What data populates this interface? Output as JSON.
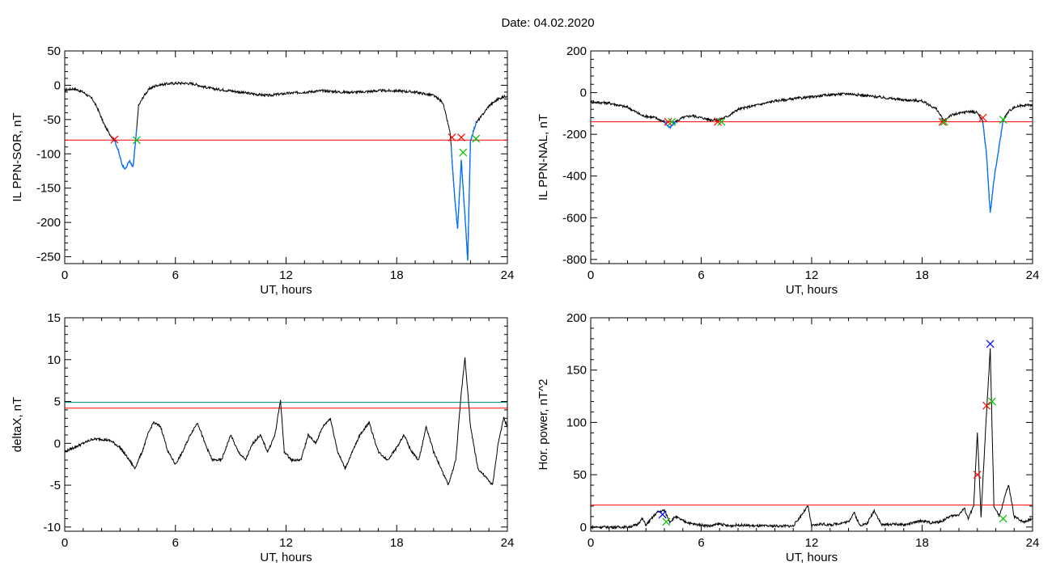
{
  "title": "Date:  04.02.2020",
  "colors": {
    "line": "#000000",
    "threshold_red": "#ff0000",
    "threshold_cyan": "#008080",
    "highlight": "#0070ff",
    "marker_red": "#ff0000",
    "marker_green": "#00c000",
    "marker_blue": "#0000ff"
  },
  "chart_data": [
    {
      "id": "sor",
      "type": "line",
      "xlabel": "UT, hours",
      "ylabel": "IL PPN-SOR, nT",
      "xlim": [
        0,
        24
      ],
      "ylim": [
        -260,
        50
      ],
      "xticks": [
        0,
        6,
        12,
        18,
        24
      ],
      "yticks": [
        50,
        0,
        -50,
        -100,
        -150,
        -200,
        -250
      ],
      "threshold": -80,
      "series": [
        {
          "values": [
            [
              0,
              -7
            ],
            [
              0.5,
              -5
            ],
            [
              1.0,
              -10
            ],
            [
              1.5,
              -20
            ],
            [
              1.8,
              -35
            ],
            [
              2.1,
              -55
            ],
            [
              2.4,
              -70
            ],
            [
              2.7,
              -80
            ],
            [
              2.9,
              -95
            ],
            [
              3.1,
              -115
            ],
            [
              3.3,
              -122
            ],
            [
              3.5,
              -110
            ],
            [
              3.7,
              -120
            ],
            [
              3.85,
              -80
            ],
            [
              4.0,
              -30
            ],
            [
              4.3,
              -15
            ],
            [
              4.6,
              -5
            ],
            [
              5.0,
              0
            ],
            [
              5.5,
              2
            ],
            [
              6.0,
              3
            ],
            [
              6.5,
              3
            ],
            [
              7.0,
              2
            ],
            [
              7.5,
              -2
            ],
            [
              8.0,
              -5
            ],
            [
              9.0,
              -8
            ],
            [
              10.0,
              -12
            ],
            [
              11.0,
              -15
            ],
            [
              12.0,
              -12
            ],
            [
              13.0,
              -10
            ],
            [
              14.0,
              -8
            ],
            [
              15.0,
              -10
            ],
            [
              16.0,
              -10
            ],
            [
              17.0,
              -8
            ],
            [
              18.0,
              -8
            ],
            [
              19.0,
              -10
            ],
            [
              20.0,
              -15
            ],
            [
              20.5,
              -25
            ],
            [
              20.9,
              -70
            ],
            [
              21.1,
              -150
            ],
            [
              21.3,
              -210
            ],
            [
              21.5,
              -110
            ],
            [
              21.7,
              -190
            ],
            [
              21.85,
              -255
            ],
            [
              22.0,
              -80
            ],
            [
              22.3,
              -55
            ],
            [
              22.6,
              -45
            ],
            [
              23.0,
              -30
            ],
            [
              23.5,
              -20
            ],
            [
              24.0,
              -15
            ]
          ]
        }
      ],
      "markers": [
        {
          "x": 2.7,
          "y": -79,
          "color": "red"
        },
        {
          "x": 3.9,
          "y": -80,
          "color": "green"
        },
        {
          "x": 21.0,
          "y": -76,
          "color": "red"
        },
        {
          "x": 21.5,
          "y": -76,
          "color": "red"
        },
        {
          "x": 22.3,
          "y": -78,
          "color": "green"
        },
        {
          "x": 21.6,
          "y": -98,
          "color": "green"
        }
      ],
      "highlights": [
        [
          2.7,
          3.9
        ],
        [
          20.95,
          22.3
        ]
      ]
    },
    {
      "id": "nal",
      "type": "line",
      "xlabel": "UT, hours",
      "ylabel": "IL PPN-NAL, nT",
      "xlim": [
        0,
        24
      ],
      "ylim": [
        -820,
        200
      ],
      "xticks": [
        0,
        6,
        12,
        18,
        24
      ],
      "yticks": [
        200,
        0,
        -200,
        -400,
        -600,
        -800
      ],
      "threshold": -140,
      "series": [
        {
          "values": [
            [
              0,
              -45
            ],
            [
              1.0,
              -50
            ],
            [
              2.0,
              -70
            ],
            [
              2.8,
              -110
            ],
            [
              3.5,
              -120
            ],
            [
              4.0,
              -140
            ],
            [
              4.3,
              -170
            ],
            [
              4.6,
              -140
            ],
            [
              5.0,
              -120
            ],
            [
              5.5,
              -110
            ],
            [
              6.0,
              -120
            ],
            [
              6.5,
              -130
            ],
            [
              7.0,
              -130
            ],
            [
              7.5,
              -110
            ],
            [
              8.0,
              -80
            ],
            [
              9.0,
              -60
            ],
            [
              10.0,
              -40
            ],
            [
              11.0,
              -30
            ],
            [
              12.0,
              -20
            ],
            [
              13.0,
              -10
            ],
            [
              14.0,
              -5
            ],
            [
              15.0,
              -15
            ],
            [
              16.0,
              -25
            ],
            [
              17.0,
              -35
            ],
            [
              18.0,
              -40
            ],
            [
              18.8,
              -80
            ],
            [
              19.2,
              -140
            ],
            [
              19.5,
              -110
            ],
            [
              20.0,
              -100
            ],
            [
              20.5,
              -90
            ],
            [
              21.0,
              -95
            ],
            [
              21.3,
              -140
            ],
            [
              21.5,
              -300
            ],
            [
              21.7,
              -580
            ],
            [
              21.9,
              -420
            ],
            [
              22.2,
              -250
            ],
            [
              22.4,
              -130
            ],
            [
              22.7,
              -90
            ],
            [
              23.0,
              -70
            ],
            [
              23.5,
              -60
            ],
            [
              24.0,
              -60
            ]
          ]
        }
      ],
      "markers": [
        {
          "x": 4.2,
          "y": -140,
          "color": "red"
        },
        {
          "x": 4.4,
          "y": -140,
          "color": "green"
        },
        {
          "x": 6.9,
          "y": -140,
          "color": "red"
        },
        {
          "x": 7.1,
          "y": -140,
          "color": "green"
        },
        {
          "x": 19.1,
          "y": -140,
          "color": "red"
        },
        {
          "x": 19.2,
          "y": -140,
          "color": "green"
        },
        {
          "x": 21.3,
          "y": -120,
          "color": "red"
        },
        {
          "x": 22.4,
          "y": -130,
          "color": "green"
        }
      ],
      "highlights": [
        [
          4.0,
          4.6
        ],
        [
          21.3,
          22.4
        ]
      ]
    },
    {
      "id": "deltax",
      "type": "line",
      "xlabel": "UT, hours",
      "ylabel": "deltaX, nT",
      "xlim": [
        0,
        24
      ],
      "ylim": [
        -10.5,
        15
      ],
      "xticks": [
        0,
        6,
        12,
        18,
        24
      ],
      "yticks": [
        15,
        10,
        5,
        0,
        -5,
        -10
      ],
      "threshold_lines": [
        {
          "y": 4.9,
          "color": "cyan"
        },
        {
          "y": 4.2,
          "color": "red"
        }
      ],
      "series": [
        {
          "values": [
            [
              0,
              -1
            ],
            [
              0.5,
              -0.5
            ],
            [
              1.0,
              0
            ],
            [
              1.5,
              0.5
            ],
            [
              2.0,
              0.5
            ],
            [
              2.5,
              0.3
            ],
            [
              3.0,
              -0.5
            ],
            [
              3.5,
              -2
            ],
            [
              3.8,
              -3
            ],
            [
              4.2,
              -1
            ],
            [
              4.5,
              1
            ],
            [
              4.8,
              2.5
            ],
            [
              5.2,
              2
            ],
            [
              5.6,
              -1
            ],
            [
              6.0,
              -2.5
            ],
            [
              6.4,
              -1
            ],
            [
              6.8,
              1
            ],
            [
              7.2,
              2.5
            ],
            [
              7.6,
              0
            ],
            [
              8.0,
              -2
            ],
            [
              8.5,
              -2
            ],
            [
              9.0,
              1
            ],
            [
              9.4,
              -1
            ],
            [
              9.8,
              -2
            ],
            [
              10.2,
              0
            ],
            [
              10.6,
              1
            ],
            [
              11.0,
              -1
            ],
            [
              11.4,
              1
            ],
            [
              11.7,
              5.2
            ],
            [
              11.9,
              -1
            ],
            [
              12.3,
              -2
            ],
            [
              12.8,
              -2
            ],
            [
              13.2,
              1
            ],
            [
              13.6,
              0
            ],
            [
              14.0,
              2
            ],
            [
              14.4,
              3
            ],
            [
              14.8,
              -1
            ],
            [
              15.2,
              -3
            ],
            [
              15.6,
              -1
            ],
            [
              16.0,
              1
            ],
            [
              16.5,
              2.5
            ],
            [
              17.0,
              -1
            ],
            [
              17.5,
              -2
            ],
            [
              18.0,
              -0.5
            ],
            [
              18.4,
              1
            ],
            [
              18.8,
              -1
            ],
            [
              19.2,
              -2
            ],
            [
              19.6,
              2
            ],
            [
              20.0,
              -1
            ],
            [
              20.4,
              -3
            ],
            [
              20.8,
              -5
            ],
            [
              21.2,
              -2
            ],
            [
              21.5,
              6
            ],
            [
              21.7,
              10.3
            ],
            [
              22.0,
              2
            ],
            [
              22.4,
              -3
            ],
            [
              22.8,
              -4
            ],
            [
              23.2,
              -5
            ],
            [
              23.5,
              0
            ],
            [
              23.8,
              3
            ],
            [
              24.0,
              2
            ]
          ]
        }
      ]
    },
    {
      "id": "power",
      "type": "line",
      "xlabel": "UT, hours",
      "ylabel": "Hor. power, nT^2",
      "xlim": [
        0,
        24
      ],
      "ylim": [
        -4,
        200
      ],
      "xticks": [
        0,
        6,
        12,
        18,
        24
      ],
      "yticks": [
        200,
        150,
        100,
        50,
        0
      ],
      "threshold": 21,
      "series": [
        {
          "values": [
            [
              0,
              0
            ],
            [
              1.0,
              0
            ],
            [
              2.0,
              0
            ],
            [
              2.5,
              2
            ],
            [
              2.8,
              8
            ],
            [
              3.0,
              2
            ],
            [
              3.3,
              8
            ],
            [
              3.6,
              14
            ],
            [
              4.0,
              16
            ],
            [
              4.3,
              5
            ],
            [
              4.6,
              10
            ],
            [
              5.0,
              6
            ],
            [
              5.5,
              3
            ],
            [
              6.0,
              2
            ],
            [
              6.5,
              1
            ],
            [
              7.0,
              3
            ],
            [
              7.5,
              1
            ],
            [
              8.0,
              2
            ],
            [
              9.0,
              1
            ],
            [
              10.0,
              1
            ],
            [
              11.0,
              1
            ],
            [
              11.8,
              20
            ],
            [
              12.0,
              1
            ],
            [
              12.5,
              3
            ],
            [
              13.0,
              2
            ],
            [
              14.0,
              5
            ],
            [
              14.3,
              14
            ],
            [
              14.6,
              2
            ],
            [
              15.0,
              3
            ],
            [
              15.4,
              16
            ],
            [
              15.8,
              2
            ],
            [
              16.5,
              3
            ],
            [
              17.0,
              2
            ],
            [
              17.5,
              4
            ],
            [
              18.0,
              6
            ],
            [
              18.5,
              4
            ],
            [
              19.0,
              5
            ],
            [
              19.5,
              10
            ],
            [
              20.0,
              12
            ],
            [
              20.3,
              18
            ],
            [
              20.5,
              8
            ],
            [
              20.8,
              20
            ],
            [
              21.0,
              90
            ],
            [
              21.2,
              10
            ],
            [
              21.5,
              110
            ],
            [
              21.7,
              170
            ],
            [
              21.9,
              20
            ],
            [
              22.2,
              10
            ],
            [
              22.5,
              30
            ],
            [
              22.7,
              40
            ],
            [
              23.0,
              10
            ],
            [
              23.5,
              5
            ],
            [
              24.0,
              8
            ]
          ]
        }
      ],
      "markers": [
        {
          "x": 3.9,
          "y": 12,
          "color": "blue"
        },
        {
          "x": 4.1,
          "y": 5,
          "color": "green"
        },
        {
          "x": 21.0,
          "y": 50,
          "color": "red"
        },
        {
          "x": 21.5,
          "y": 116,
          "color": "red"
        },
        {
          "x": 21.7,
          "y": 175,
          "color": "blue"
        },
        {
          "x": 21.8,
          "y": 120,
          "color": "green"
        },
        {
          "x": 22.4,
          "y": 8,
          "color": "green"
        }
      ]
    }
  ]
}
